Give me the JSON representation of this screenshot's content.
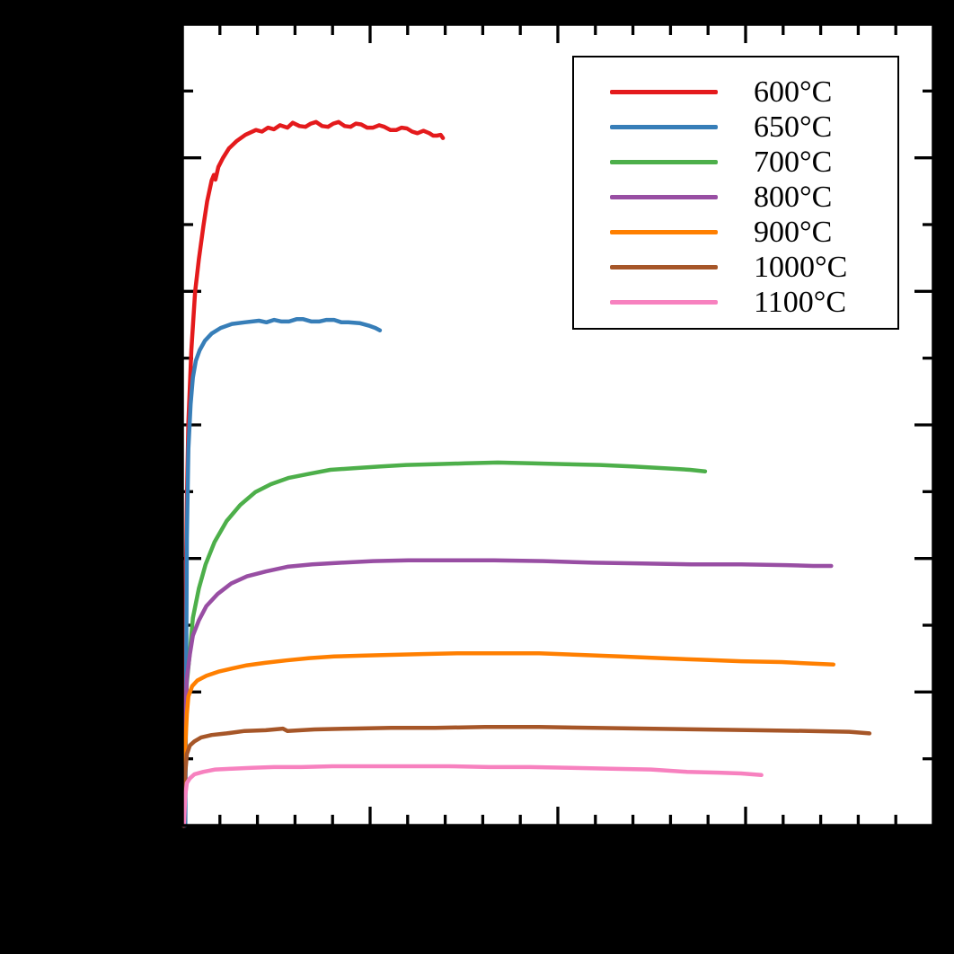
{
  "figure": {
    "outer_background_color": "#000000",
    "plot_background_color": "#ffffff",
    "frame_color": "#000000",
    "axis_tick_labels_visible": false,
    "title": ""
  },
  "chart_data": {
    "type": "line",
    "title": "",
    "xlabel": "",
    "ylabel": "",
    "grid": false,
    "legend_position": "top-right",
    "coordinate_units": "fraction of plot-axis span, origin at bottom-left of plot frame",
    "axes": {
      "ticks_direction": "in",
      "ticks_on_all_sides": true,
      "x_major_ticks": [
        0.25,
        0.5,
        0.75
      ],
      "x_minor_ticks": [
        0.05,
        0.1,
        0.15,
        0.2,
        0.3,
        0.35,
        0.4,
        0.45,
        0.55,
        0.6,
        0.65,
        0.7,
        0.8,
        0.85,
        0.9,
        0.95
      ],
      "y_major_ticks": [
        0.1667,
        0.3333,
        0.5,
        0.6667,
        0.8333
      ],
      "y_minor_ticks": [
        0.0833,
        0.25,
        0.4167,
        0.5833,
        0.75,
        0.9167
      ]
    },
    "series": [
      {
        "name": "600°C",
        "color": "#e41a1c",
        "points": [
          [
            0.001,
            0.0
          ],
          [
            0.003,
            0.123
          ],
          [
            0.004,
            0.246
          ],
          [
            0.005,
            0.335
          ],
          [
            0.006,
            0.402
          ],
          [
            0.008,
            0.503
          ],
          [
            0.012,
            0.593
          ],
          [
            0.017,
            0.666
          ],
          [
            0.022,
            0.707
          ],
          [
            0.028,
            0.748
          ],
          [
            0.033,
            0.779
          ],
          [
            0.039,
            0.805
          ],
          [
            0.042,
            0.812
          ],
          [
            0.044,
            0.806
          ],
          [
            0.048,
            0.822
          ],
          [
            0.054,
            0.833
          ],
          [
            0.062,
            0.845
          ],
          [
            0.072,
            0.854
          ],
          [
            0.084,
            0.862
          ],
          [
            0.098,
            0.868
          ],
          [
            0.106,
            0.866
          ],
          [
            0.114,
            0.871
          ],
          [
            0.122,
            0.869
          ],
          [
            0.13,
            0.874
          ],
          [
            0.14,
            0.871
          ],
          [
            0.147,
            0.877
          ],
          [
            0.156,
            0.873
          ],
          [
            0.164,
            0.872
          ],
          [
            0.171,
            0.876
          ],
          [
            0.178,
            0.878
          ],
          [
            0.186,
            0.873
          ],
          [
            0.194,
            0.872
          ],
          [
            0.201,
            0.876
          ],
          [
            0.208,
            0.878
          ],
          [
            0.216,
            0.873
          ],
          [
            0.224,
            0.872
          ],
          [
            0.231,
            0.876
          ],
          [
            0.238,
            0.875
          ],
          [
            0.246,
            0.871
          ],
          [
            0.254,
            0.871
          ],
          [
            0.262,
            0.874
          ],
          [
            0.269,
            0.872
          ],
          [
            0.277,
            0.868
          ],
          [
            0.285,
            0.868
          ],
          [
            0.292,
            0.871
          ],
          [
            0.299,
            0.87
          ],
          [
            0.306,
            0.866
          ],
          [
            0.313,
            0.864
          ],
          [
            0.321,
            0.867
          ],
          [
            0.329,
            0.864
          ],
          [
            0.334,
            0.861
          ],
          [
            0.339,
            0.861
          ],
          [
            0.344,
            0.862
          ],
          [
            0.347,
            0.858
          ]
        ]
      },
      {
        "name": "650°C",
        "color": "#377eb8",
        "points": [
          [
            0.004,
            0.0
          ],
          [
            0.005,
            0.179
          ],
          [
            0.006,
            0.358
          ],
          [
            0.008,
            0.47
          ],
          [
            0.011,
            0.526
          ],
          [
            0.014,
            0.559
          ],
          [
            0.018,
            0.58
          ],
          [
            0.023,
            0.593
          ],
          [
            0.03,
            0.605
          ],
          [
            0.039,
            0.614
          ],
          [
            0.051,
            0.621
          ],
          [
            0.066,
            0.626
          ],
          [
            0.083,
            0.628
          ],
          [
            0.102,
            0.63
          ],
          [
            0.112,
            0.628
          ],
          [
            0.122,
            0.631
          ],
          [
            0.132,
            0.629
          ],
          [
            0.142,
            0.629
          ],
          [
            0.152,
            0.632
          ],
          [
            0.161,
            0.632
          ],
          [
            0.172,
            0.629
          ],
          [
            0.182,
            0.629
          ],
          [
            0.192,
            0.631
          ],
          [
            0.202,
            0.631
          ],
          [
            0.212,
            0.628
          ],
          [
            0.221,
            0.628
          ],
          [
            0.236,
            0.627
          ],
          [
            0.248,
            0.624
          ],
          [
            0.257,
            0.621
          ],
          [
            0.263,
            0.618
          ]
        ]
      },
      {
        "name": "700°C",
        "color": "#4daf4a",
        "points": [
          [
            0.001,
            0.0
          ],
          [
            0.002,
            0.077
          ],
          [
            0.004,
            0.133
          ],
          [
            0.006,
            0.178
          ],
          [
            0.01,
            0.217
          ],
          [
            0.014,
            0.259
          ],
          [
            0.022,
            0.296
          ],
          [
            0.031,
            0.326
          ],
          [
            0.043,
            0.354
          ],
          [
            0.059,
            0.38
          ],
          [
            0.077,
            0.4
          ],
          [
            0.097,
            0.416
          ],
          [
            0.118,
            0.426
          ],
          [
            0.142,
            0.434
          ],
          [
            0.169,
            0.439
          ],
          [
            0.197,
            0.444
          ],
          [
            0.228,
            0.446
          ],
          [
            0.262,
            0.448
          ],
          [
            0.298,
            0.45
          ],
          [
            0.336,
            0.451
          ],
          [
            0.377,
            0.452
          ],
          [
            0.42,
            0.453
          ],
          [
            0.465,
            0.452
          ],
          [
            0.511,
            0.451
          ],
          [
            0.556,
            0.45
          ],
          [
            0.602,
            0.448
          ],
          [
            0.642,
            0.446
          ],
          [
            0.676,
            0.444
          ],
          [
            0.696,
            0.442
          ]
        ]
      },
      {
        "name": "800°C",
        "color": "#984ea3",
        "points": [
          [
            0.002,
            0.0
          ],
          [
            0.003,
            0.066
          ],
          [
            0.004,
            0.133
          ],
          [
            0.006,
            0.184
          ],
          [
            0.01,
            0.214
          ],
          [
            0.014,
            0.237
          ],
          [
            0.022,
            0.256
          ],
          [
            0.032,
            0.274
          ],
          [
            0.047,
            0.289
          ],
          [
            0.065,
            0.302
          ],
          [
            0.086,
            0.311
          ],
          [
            0.111,
            0.317
          ],
          [
            0.14,
            0.323
          ],
          [
            0.173,
            0.326
          ],
          [
            0.212,
            0.328
          ],
          [
            0.254,
            0.33
          ],
          [
            0.301,
            0.331
          ],
          [
            0.355,
            0.331
          ],
          [
            0.415,
            0.331
          ],
          [
            0.481,
            0.33
          ],
          [
            0.547,
            0.328
          ],
          [
            0.612,
            0.327
          ],
          [
            0.678,
            0.326
          ],
          [
            0.744,
            0.326
          ],
          [
            0.804,
            0.325
          ],
          [
            0.84,
            0.324
          ],
          [
            0.864,
            0.324
          ]
        ]
      },
      {
        "name": "900°C",
        "color": "#ff7f00",
        "points": [
          [
            0.002,
            0.0
          ],
          [
            0.003,
            0.05
          ],
          [
            0.004,
            0.1
          ],
          [
            0.006,
            0.139
          ],
          [
            0.008,
            0.161
          ],
          [
            0.013,
            0.174
          ],
          [
            0.02,
            0.181
          ],
          [
            0.032,
            0.187
          ],
          [
            0.048,
            0.192
          ],
          [
            0.066,
            0.196
          ],
          [
            0.086,
            0.2
          ],
          [
            0.11,
            0.203
          ],
          [
            0.138,
            0.206
          ],
          [
            0.169,
            0.209
          ],
          [
            0.202,
            0.211
          ],
          [
            0.238,
            0.212
          ],
          [
            0.278,
            0.213
          ],
          [
            0.319,
            0.214
          ],
          [
            0.367,
            0.215
          ],
          [
            0.421,
            0.215
          ],
          [
            0.475,
            0.215
          ],
          [
            0.529,
            0.213
          ],
          [
            0.583,
            0.211
          ],
          [
            0.636,
            0.209
          ],
          [
            0.69,
            0.207
          ],
          [
            0.744,
            0.205
          ],
          [
            0.798,
            0.204
          ],
          [
            0.84,
            0.202
          ],
          [
            0.867,
            0.201
          ]
        ]
      },
      {
        "name": "1000°C",
        "color": "#a65628",
        "points": [
          [
            0.002,
            0.0
          ],
          [
            0.003,
            0.033
          ],
          [
            0.004,
            0.066
          ],
          [
            0.006,
            0.089
          ],
          [
            0.01,
            0.1
          ],
          [
            0.016,
            0.105
          ],
          [
            0.025,
            0.11
          ],
          [
            0.039,
            0.113
          ],
          [
            0.059,
            0.115
          ],
          [
            0.083,
            0.118
          ],
          [
            0.111,
            0.119
          ],
          [
            0.134,
            0.121
          ],
          [
            0.14,
            0.118
          ],
          [
            0.176,
            0.12
          ],
          [
            0.224,
            0.121
          ],
          [
            0.278,
            0.122
          ],
          [
            0.337,
            0.122
          ],
          [
            0.403,
            0.123
          ],
          [
            0.475,
            0.123
          ],
          [
            0.547,
            0.122
          ],
          [
            0.618,
            0.121
          ],
          [
            0.69,
            0.12
          ],
          [
            0.762,
            0.119
          ],
          [
            0.834,
            0.118
          ],
          [
            0.888,
            0.117
          ],
          [
            0.915,
            0.115
          ]
        ]
      },
      {
        "name": "1100°C",
        "color": "#f781bf",
        "points": [
          [
            0.002,
            0.0
          ],
          [
            0.003,
            0.019
          ],
          [
            0.004,
            0.038
          ],
          [
            0.006,
            0.053
          ],
          [
            0.01,
            0.059
          ],
          [
            0.016,
            0.064
          ],
          [
            0.028,
            0.067
          ],
          [
            0.044,
            0.07
          ],
          [
            0.066,
            0.071
          ],
          [
            0.092,
            0.072
          ],
          [
            0.122,
            0.073
          ],
          [
            0.158,
            0.073
          ],
          [
            0.2,
            0.074
          ],
          [
            0.248,
            0.074
          ],
          [
            0.301,
            0.074
          ],
          [
            0.355,
            0.074
          ],
          [
            0.409,
            0.073
          ],
          [
            0.463,
            0.073
          ],
          [
            0.517,
            0.072
          ],
          [
            0.571,
            0.071
          ],
          [
            0.624,
            0.07
          ],
          [
            0.672,
            0.067
          ],
          [
            0.714,
            0.066
          ],
          [
            0.744,
            0.065
          ],
          [
            0.771,
            0.063
          ]
        ]
      }
    ]
  }
}
